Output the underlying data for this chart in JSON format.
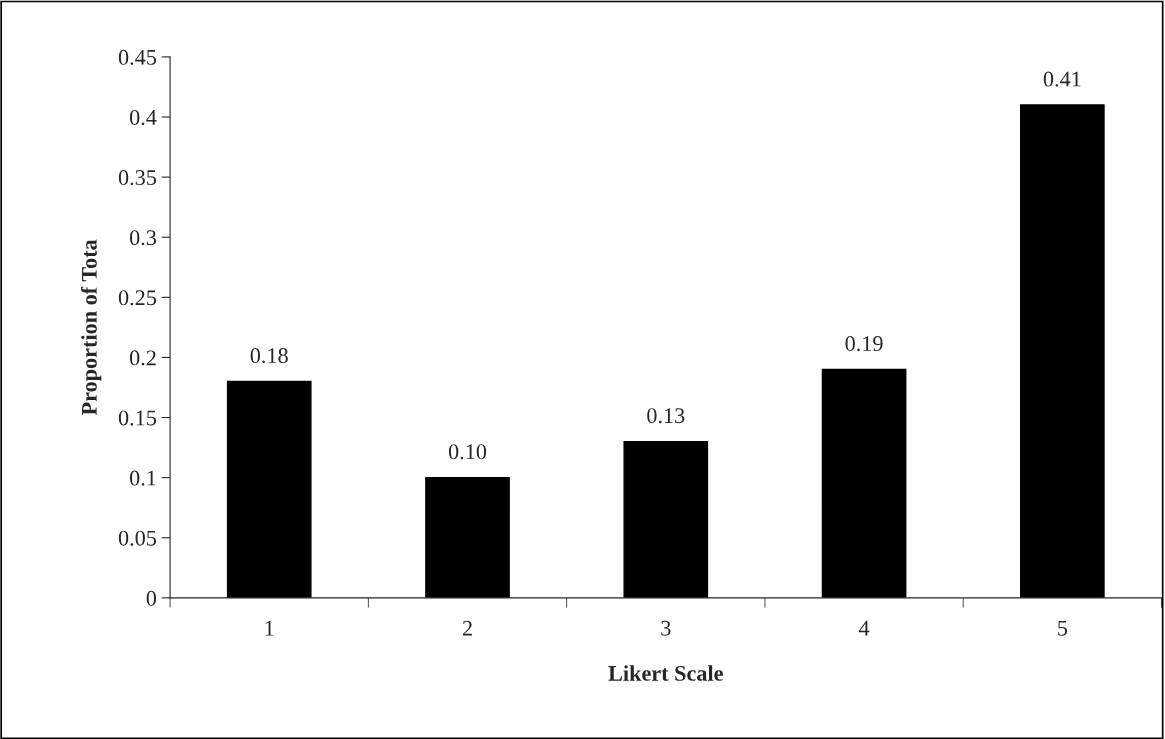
{
  "chart_data": {
    "type": "bar",
    "xlabel": "Likert Scale",
    "ylabel": "Proportion of Tota",
    "categories": [
      "1",
      "2",
      "3",
      "4",
      "5"
    ],
    "series": [
      {
        "color": "#000000",
        "values": [
          0.18,
          0.1,
          0.13,
          0.19,
          0.41
        ],
        "value_labels": [
          "0.18",
          "0.10",
          "0.13",
          "0.19",
          "0.41"
        ]
      }
    ],
    "ylim": [
      0,
      0.45
    ],
    "yticks": [
      0,
      0.05,
      0.1,
      0.15,
      0.2,
      0.25,
      0.3,
      0.35,
      0.4,
      0.45
    ],
    "grid": false
  }
}
